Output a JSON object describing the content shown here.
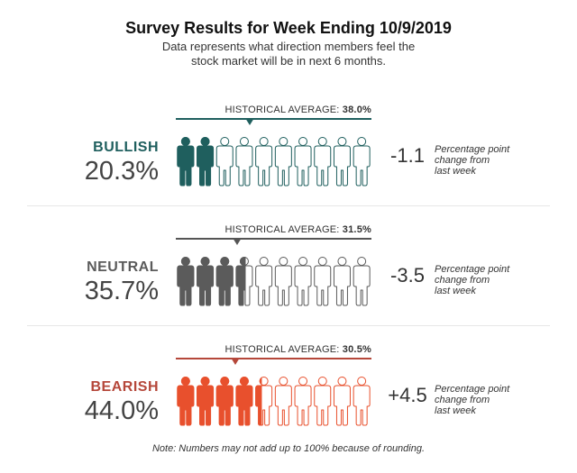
{
  "chart_data": {
    "type": "pictograph",
    "title": "Survey Results for Week Ending 10/9/2019",
    "subtitle_lines": [
      "Data represents what direction members feel the",
      "stock market will be in next 6 months."
    ],
    "icons_per_row": 10,
    "scale_max_pct": 100,
    "note": "Note: Numbers may not add up to 100% because of rounding.",
    "change_note_lines": [
      "Percentage point",
      "change from",
      "last week"
    ],
    "categories": [
      {
        "name": "BULLISH",
        "value_pct": 20.3,
        "value_label": "20.3%",
        "historical_average_label": "HISTORICAL AVERAGE:",
        "historical_average_value": "38.0%",
        "historical_average_pct": 38.0,
        "change_label": "-1.1",
        "change": -1.1,
        "color": "#1f5f5e",
        "line_color": "#1f5f5e"
      },
      {
        "name": "NEUTRAL",
        "value_pct": 35.7,
        "value_label": "35.7%",
        "historical_average_label": "HISTORICAL AVERAGE:",
        "historical_average_value": "31.5%",
        "historical_average_pct": 31.5,
        "change_label": "-3.5",
        "change": -3.5,
        "color": "#5b5b5b",
        "line_color": "#555555"
      },
      {
        "name": "BEARISH",
        "value_pct": 44.0,
        "value_label": "44.0%",
        "historical_average_label": "HISTORICAL AVERAGE:",
        "historical_average_value": "30.5%",
        "historical_average_pct": 30.5,
        "change_label": "+4.5",
        "change": 4.5,
        "color": "#e8502d",
        "line_color": "#b5473a",
        "label_color": "#b5473a"
      }
    ]
  }
}
